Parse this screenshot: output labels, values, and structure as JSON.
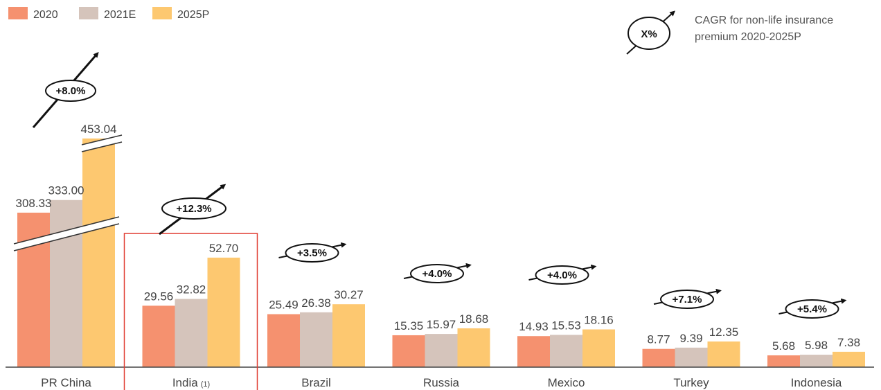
{
  "chart_data": {
    "type": "bar",
    "categories": [
      "PR China",
      "India",
      "Brazil",
      "Russia",
      "Mexico",
      "Turkey",
      "Indonesia"
    ],
    "category_notes": [
      "",
      "(1)",
      "",
      "",
      "",
      "",
      ""
    ],
    "series": [
      {
        "name": "2020",
        "values": [
          308.33,
          29.56,
          25.49,
          15.35,
          14.93,
          8.77,
          5.68
        ]
      },
      {
        "name": "2021E",
        "values": [
          333.0,
          32.82,
          26.38,
          15.97,
          15.53,
          9.39,
          5.98
        ]
      },
      {
        "name": "2025P",
        "values": [
          453.04,
          52.7,
          30.27,
          18.68,
          18.16,
          12.35,
          7.38
        ]
      }
    ],
    "value_labels": [
      [
        "308.33",
        "333.00",
        "453.04"
      ],
      [
        "29.56",
        "32.82",
        "52.70"
      ],
      [
        "25.49",
        "26.38",
        "30.27"
      ],
      [
        "15.35",
        "15.97",
        "18.68"
      ],
      [
        "14.93",
        "15.53",
        "18.16"
      ],
      [
        "8.77",
        "9.39",
        "12.35"
      ],
      [
        "5.68",
        "5.98",
        "7.38"
      ]
    ],
    "cagr": [
      "+8.0%",
      "+12.3%",
      "+3.5%",
      "+4.0%",
      "+4.0%",
      "+7.1%",
      "+5.4%"
    ],
    "axis_break_category": "PR China",
    "highlighted_category": "India",
    "colors": {
      "2020": "#F5916F",
      "2021E": "#D5C4BB",
      "2025P": "#FDC870"
    },
    "highlight_color": "#E03C31",
    "legend_position": "top-left",
    "grid": false
  },
  "legend_note": {
    "symbol_text": "X%",
    "text_line1": "CAGR for non-life insurance",
    "text_line2": "premium 2020-2025P"
  }
}
